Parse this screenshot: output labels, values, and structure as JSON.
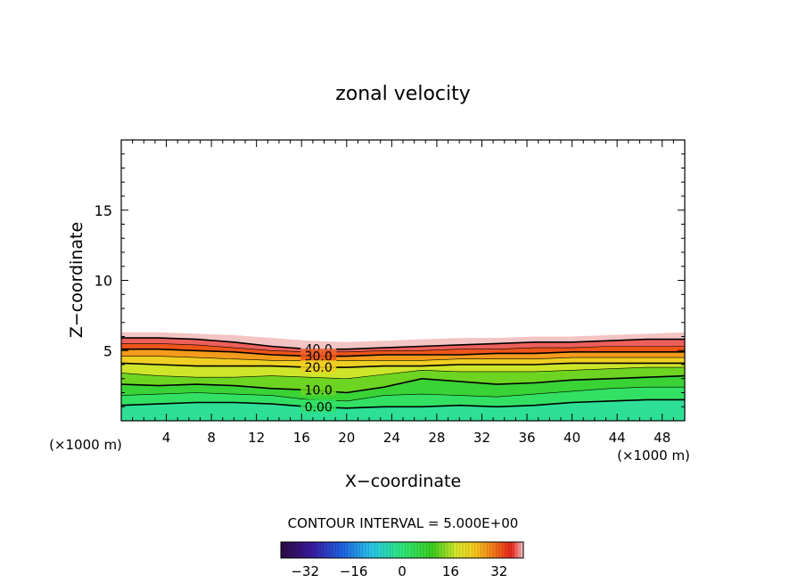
{
  "chart_data": {
    "type": "contour",
    "title": "zonal velocity",
    "xlabel": "X−coordinate",
    "ylabel": "Z−coordinate",
    "x_unit_note": "(×1000 m)",
    "y_unit_note": "(×1000 m)",
    "xlim": [
      0,
      50
    ],
    "ylim": [
      0,
      20
    ],
    "x_ticks": [
      4,
      8,
      12,
      16,
      20,
      24,
      28,
      32,
      36,
      40,
      44,
      48
    ],
    "y_ticks": [
      5,
      10,
      15
    ],
    "contour_interval_text": "CONTOUR INTERVAL = 5.000E+00",
    "contour_labels": [
      "40.0",
      "30.0",
      "20.0",
      "10.0",
      "0.00"
    ],
    "colorbar_range": [
      -40,
      40
    ],
    "colorbar_ticks": [
      -32,
      -16,
      0,
      16,
      32
    ],
    "colorbar_tick_labels": [
      "−32",
      "−16",
      "0",
      "16",
      "32"
    ],
    "field_top_z": [
      6.3,
      6.3,
      6.2,
      6.1,
      5.9,
      5.7,
      5.6,
      5.7,
      5.8,
      5.9,
      5.9,
      6.0,
      6.0,
      6.1,
      6.2,
      6.3
    ],
    "contour_levels": [
      {
        "level": 40,
        "z": [
          5.9,
          5.9,
          5.8,
          5.6,
          5.3,
          5.1,
          5.1,
          5.2,
          5.3,
          5.4,
          5.5,
          5.6,
          5.6,
          5.7,
          5.8,
          5.8
        ]
      },
      {
        "level": 35,
        "z": [
          5.5,
          5.5,
          5.4,
          5.2,
          5.0,
          4.9,
          4.9,
          5.0,
          5.0,
          5.1,
          5.1,
          5.2,
          5.2,
          5.3,
          5.3,
          5.3
        ]
      },
      {
        "level": 30,
        "z": [
          5.1,
          5.1,
          5.0,
          4.9,
          4.7,
          4.6,
          4.6,
          4.7,
          4.7,
          4.7,
          4.8,
          4.8,
          4.9,
          4.9,
          4.9,
          4.9
        ]
      },
      {
        "level": 25,
        "z": [
          4.6,
          4.6,
          4.5,
          4.4,
          4.3,
          4.3,
          4.3,
          4.3,
          4.3,
          4.4,
          4.4,
          4.4,
          4.5,
          4.5,
          4.5,
          4.5
        ]
      },
      {
        "level": 20,
        "z": [
          4.1,
          4.0,
          3.9,
          3.9,
          3.9,
          3.8,
          3.8,
          3.9,
          3.9,
          4.0,
          4.0,
          4.0,
          4.1,
          4.1,
          4.1,
          4.1
        ]
      },
      {
        "level": 15,
        "z": [
          3.4,
          3.2,
          3.1,
          3.1,
          3.2,
          3.1,
          3.0,
          3.3,
          3.6,
          3.5,
          3.5,
          3.5,
          3.6,
          3.7,
          3.8,
          3.8
        ]
      },
      {
        "level": 10,
        "z": [
          2.6,
          2.5,
          2.6,
          2.5,
          2.3,
          2.2,
          2.0,
          2.4,
          3.0,
          2.8,
          2.6,
          2.7,
          2.9,
          3.0,
          3.1,
          3.2
        ]
      },
      {
        "level": 5,
        "z": [
          1.8,
          1.9,
          2.0,
          1.9,
          1.8,
          1.5,
          1.4,
          1.8,
          1.9,
          1.8,
          1.7,
          1.9,
          2.1,
          2.3,
          2.4,
          2.4
        ]
      },
      {
        "level": 0,
        "z": [
          1.1,
          1.2,
          1.3,
          1.3,
          1.2,
          1.0,
          0.9,
          1.0,
          1.0,
          1.1,
          1.0,
          1.1,
          1.3,
          1.4,
          1.5,
          1.5
        ]
      }
    ],
    "grid": false
  }
}
